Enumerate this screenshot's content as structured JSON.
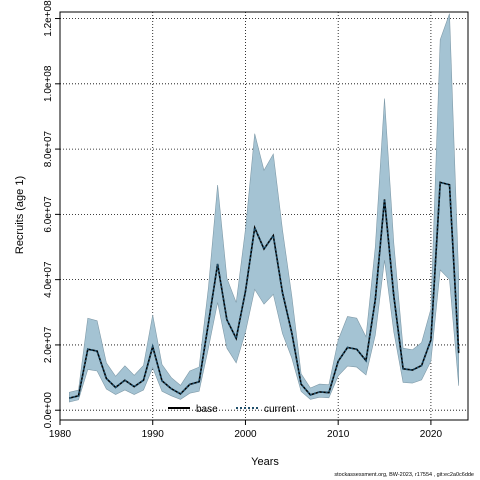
{
  "footer_text": "stockassessment.org, BW-2023, r17554 , git:ec2a0c6dde",
  "chart_data": {
    "type": "line",
    "xlabel": "Years",
    "ylabel": "Recruits (age 1)",
    "xlim": [
      1980,
      2024
    ],
    "ylim": [
      -3000000,
      122000000
    ],
    "x_ticks": [
      1980,
      1990,
      2000,
      2010,
      2020
    ],
    "y_ticks": [
      0,
      20000000,
      40000000,
      60000000,
      80000000,
      100000000,
      120000000
    ],
    "y_tick_labels": [
      "0.0e+00",
      "2.0e+07",
      "4.0e+07",
      "6.0e+07",
      "8.0e+07",
      "1.0e+08",
      "1.2e+08"
    ],
    "grid": true,
    "legend_position": "bottom",
    "colors": {
      "band": "#a4c3d3",
      "band_edge": "#7f9aa8",
      "base": "#000000",
      "current": "#1f4f6b"
    },
    "x": [
      1981,
      1982,
      1983,
      1984,
      1985,
      1986,
      1987,
      1988,
      1989,
      1990,
      1991,
      1992,
      1993,
      1994,
      1995,
      1996,
      1997,
      1998,
      1999,
      2000,
      2001,
      2002,
      2003,
      2004,
      2005,
      2006,
      2007,
      2008,
      2009,
      2010,
      2011,
      2012,
      2013,
      2014,
      2015,
      2016,
      2017,
      2018,
      2019,
      2020,
      2021,
      2022,
      2023
    ],
    "series": [
      {
        "name": "base",
        "values": [
          3700000,
          4400000,
          18700000,
          18100000,
          9700000,
          7000000,
          9200000,
          7200000,
          9200000,
          19500000,
          9000000,
          6600000,
          5000000,
          7900000,
          8700000,
          26600000,
          44800000,
          27700000,
          22000000,
          36500000,
          55900000,
          49400000,
          53500000,
          36000000,
          23700000,
          8000000,
          4700000,
          5600000,
          5400000,
          15000000,
          19200000,
          18700000,
          15200000,
          33900000,
          64600000,
          35000000,
          12700000,
          12300000,
          13700000,
          21500000,
          69800000,
          69100000,
          17500000
        ]
      },
      {
        "name": "current",
        "values": [
          3700000,
          4400000,
          18700000,
          18100000,
          9700000,
          7000000,
          9200000,
          7200000,
          9200000,
          19500000,
          9000000,
          6600000,
          5000000,
          7900000,
          8700000,
          26600000,
          44800000,
          27700000,
          22000000,
          36500000,
          55900000,
          49400000,
          53500000,
          36000000,
          23700000,
          8000000,
          4700000,
          5600000,
          5400000,
          15000000,
          19200000,
          18700000,
          15200000,
          33900000,
          64600000,
          35000000,
          12700000,
          12300000,
          13700000,
          21500000,
          69800000,
          69100000,
          17500000
        ]
      }
    ],
    "band_lower": [
      2500000,
      3200000,
      12500000,
      12000000,
      6500000,
      4800000,
      6200000,
      4800000,
      6200000,
      13000000,
      5800000,
      4400000,
      3300000,
      5200000,
      5800000,
      19000000,
      33000000,
      19000000,
      14500000,
      24000000,
      37000000,
      32500000,
      35500000,
      23500000,
      16000000,
      5800000,
      3300000,
      4000000,
      3800000,
      10500000,
      13500000,
      13200000,
      10800000,
      23000000,
      46000000,
      24000000,
      8500000,
      8300000,
      9300000,
      15000000,
      43000000,
      40000000,
      7500000
    ],
    "band_upper": [
      5500000,
      6200000,
      28200000,
      27400000,
      14500000,
      10400000,
      13600000,
      10700000,
      13700000,
      29200000,
      14000000,
      10000000,
      7600000,
      12000000,
      13200000,
      37500000,
      69000000,
      40400000,
      33000000,
      55500000,
      84700000,
      73500000,
      78500000,
      55200000,
      35000000,
      11200000,
      6800000,
      8000000,
      7800000,
      21500000,
      28700000,
      28200000,
      22500000,
      50000000,
      95500000,
      51200000,
      19000000,
      18500000,
      20700000,
      31000000,
      113500000,
      121500000,
      40500000
    ]
  }
}
